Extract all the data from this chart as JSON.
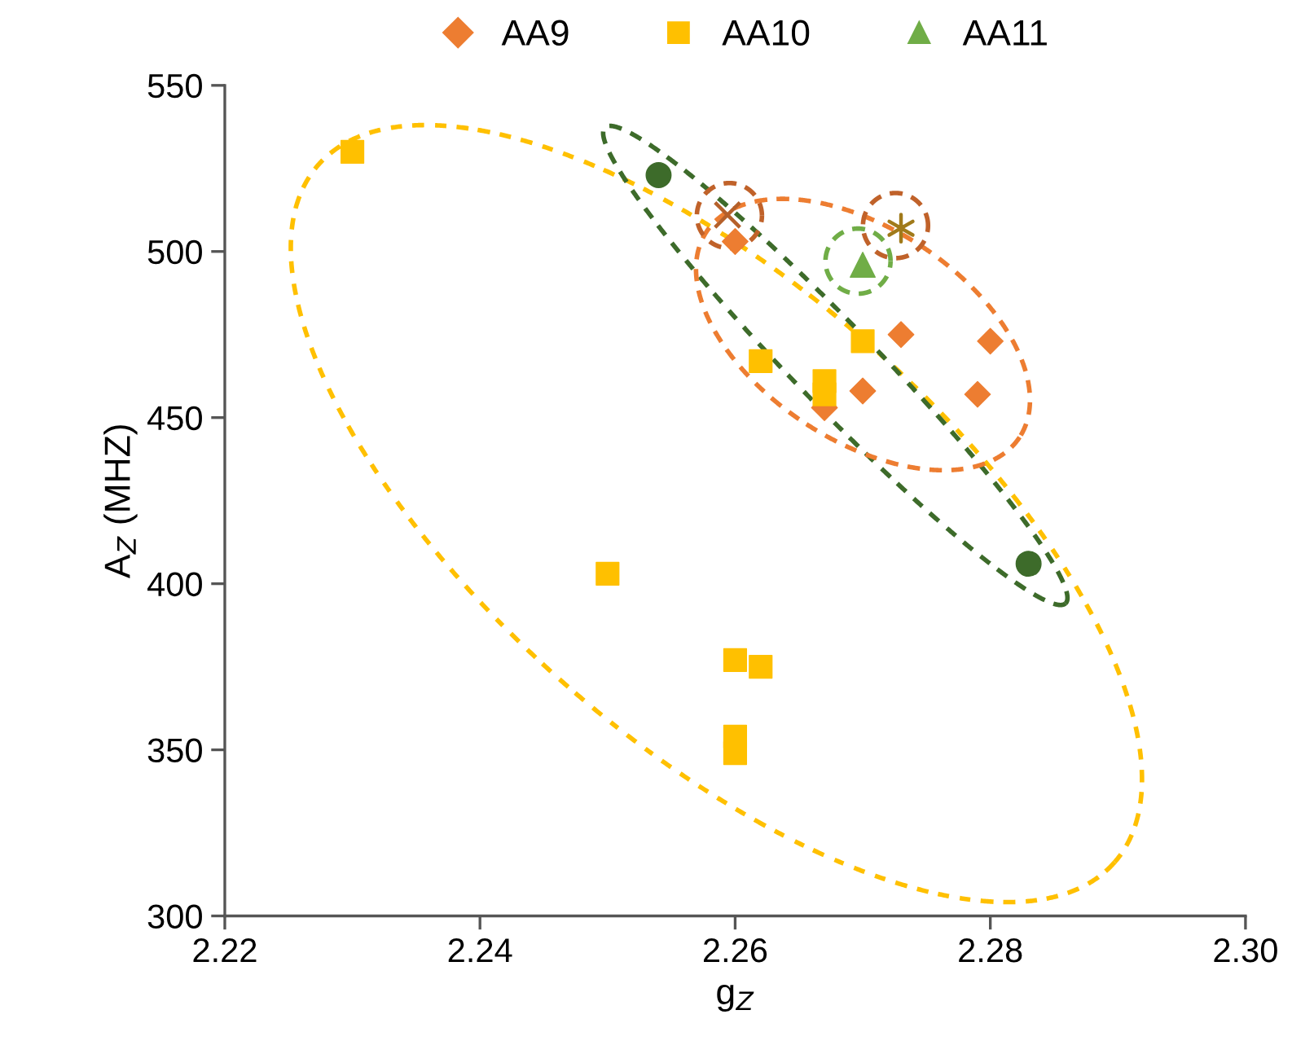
{
  "chart_data": {
    "type": "scatter",
    "xlabel": "g$_{Z}$",
    "ylabel": "A$_{Z}$ (MHZ)",
    "xlim": [
      2.22,
      2.3
    ],
    "ylim": [
      300,
      550
    ],
    "xticks": [
      {
        "value": 2.22,
        "label": "2.22"
      },
      {
        "value": 2.24,
        "label": "2.24"
      },
      {
        "value": 2.26,
        "label": "2.26"
      },
      {
        "value": 2.28,
        "label": "2.28"
      },
      {
        "value": 2.3,
        "label": "2.30"
      }
    ],
    "yticks": [
      300,
      350,
      400,
      450,
      500,
      550
    ],
    "grid": false,
    "legend": "top",
    "series": [
      {
        "name": "AA9",
        "marker": "diamond",
        "color": "#ed7d31",
        "x": [
          2.26,
          2.273,
          2.28,
          2.27,
          2.279,
          2.267
        ],
        "values": [
          503,
          475,
          473,
          458,
          457,
          453
        ]
      },
      {
        "name": "AA10",
        "marker": "square",
        "color": "#ffc000",
        "x": [
          2.23,
          2.262,
          2.27,
          2.267,
          2.267,
          2.25,
          2.26,
          2.262,
          2.26,
          2.26
        ],
        "values": [
          530,
          467,
          473,
          461,
          457,
          403,
          377,
          375,
          354,
          349
        ]
      },
      {
        "name": "AA11",
        "marker": "triangle",
        "color": "#70ad47",
        "x": [
          2.27
        ],
        "values": [
          496
        ]
      },
      {
        "marker": "circle",
        "color": "#3d6b2a",
        "x": [
          2.254,
          2.283
        ],
        "values": [
          523,
          406
        ]
      },
      {
        "marker": "cross",
        "color": "#b5602a",
        "x": [
          2.2594
        ],
        "values": [
          511
        ]
      },
      {
        "marker": "cross",
        "color": "#a07a1a",
        "x": [
          2.273
        ],
        "values": [
          507
        ]
      }
    ]
  }
}
